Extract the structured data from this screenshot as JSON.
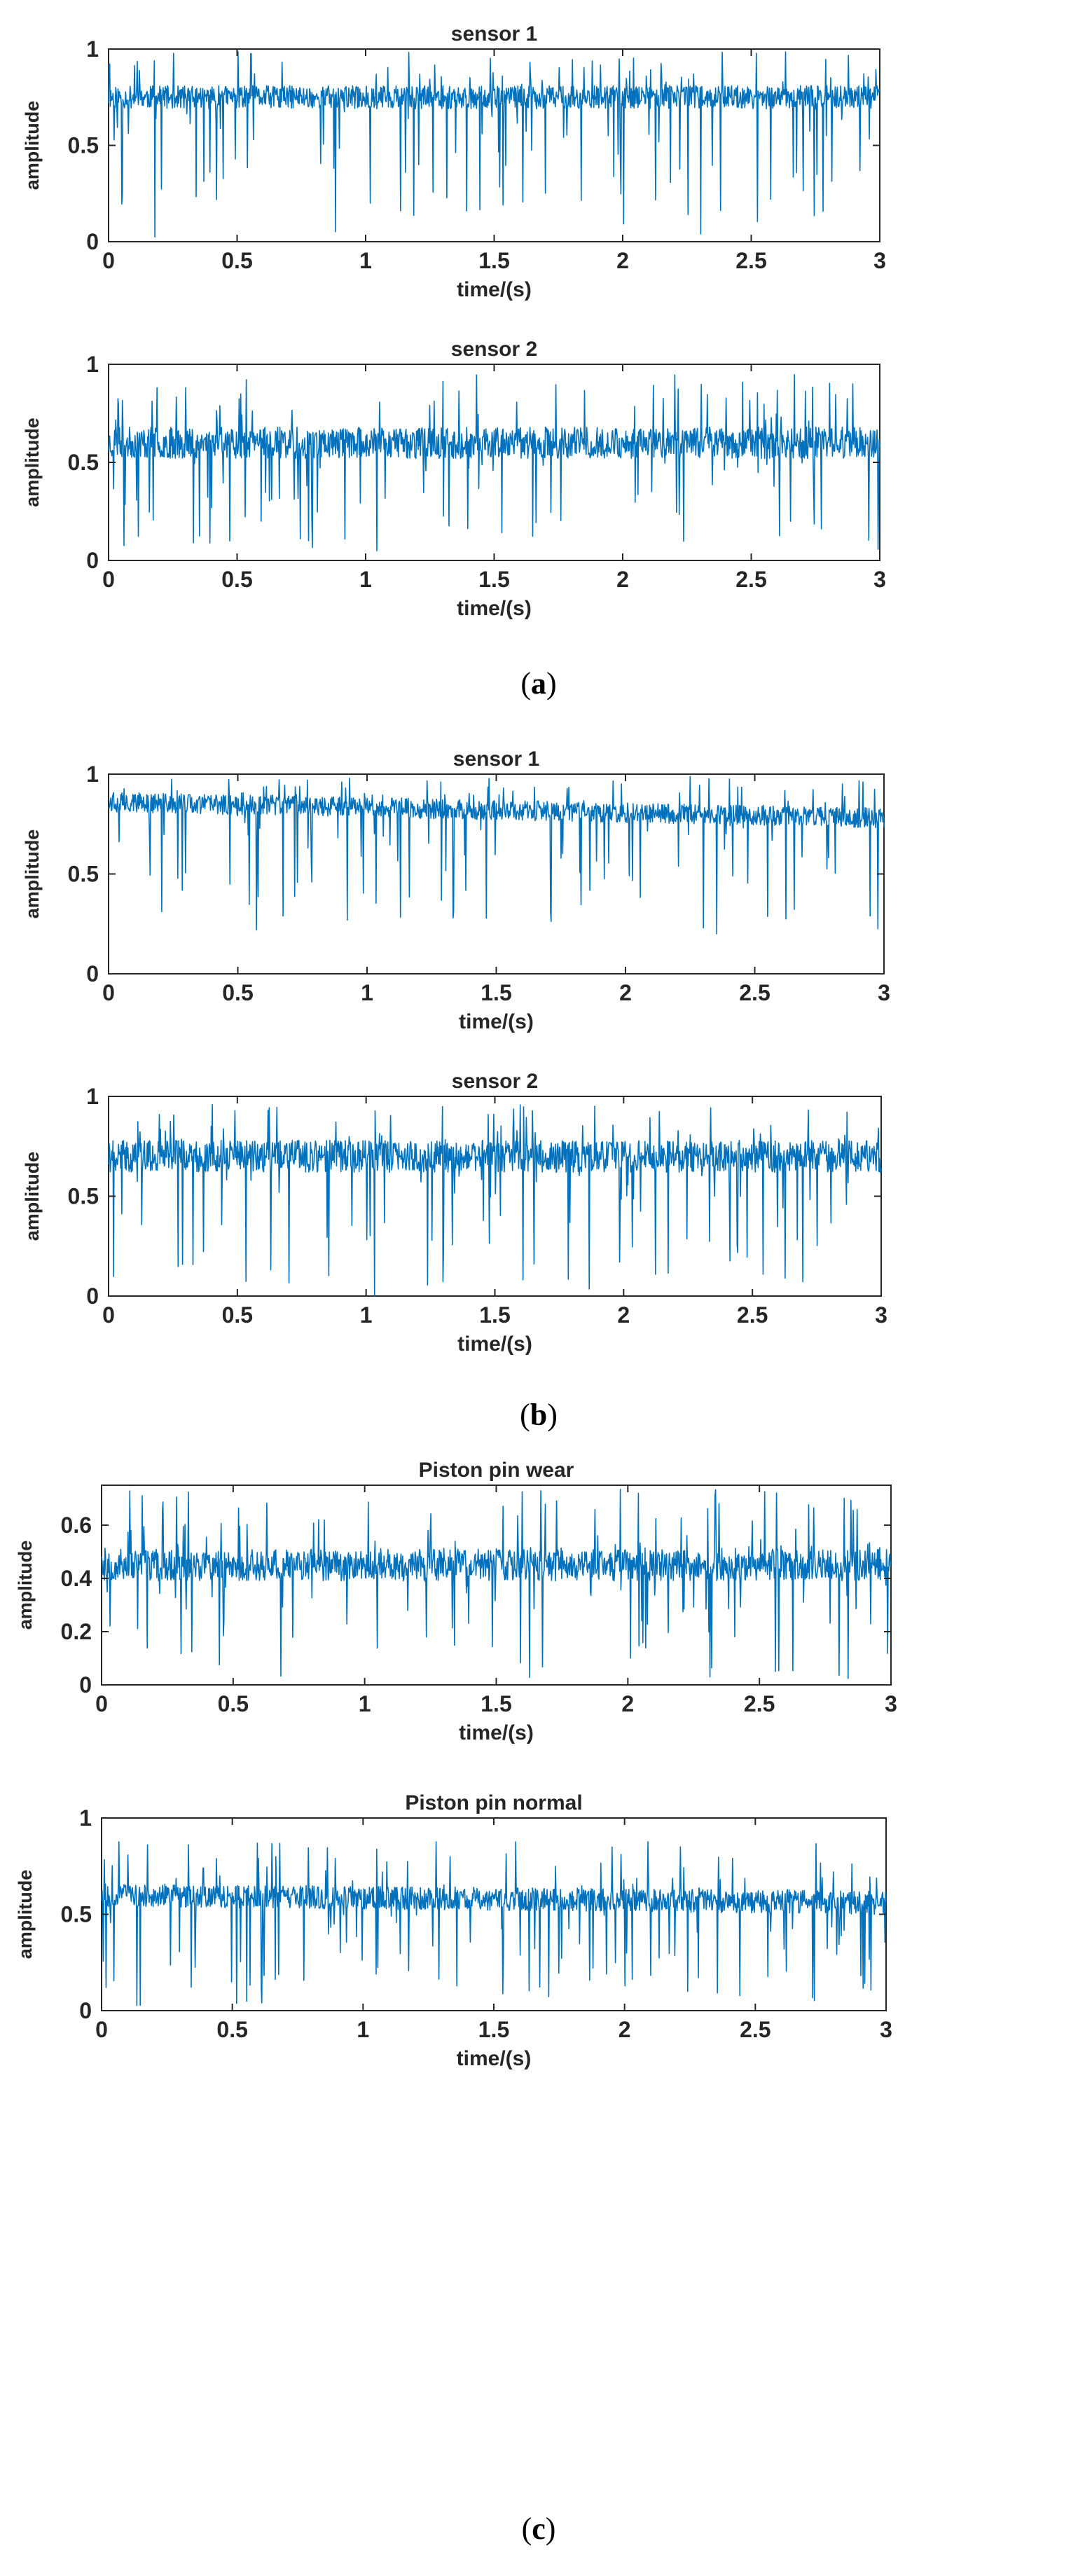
{
  "colors": {
    "signal": "#0072BD",
    "axis": "#262626",
    "background": "#ffffff"
  },
  "panels": [
    {
      "caption": "a",
      "open": "(",
      "close": ")"
    },
    {
      "caption": "b",
      "open": "(",
      "close": ")"
    },
    {
      "caption": "c",
      "open": "(",
      "close": ")"
    }
  ],
  "chart_data": [
    {
      "type": "line",
      "panel": "a",
      "title": "sensor 1",
      "xlabel": "time/(s)",
      "ylabel": "amplitude",
      "xlim": [
        0,
        3
      ],
      "ylim": [
        0,
        1
      ],
      "xticks": [
        0,
        0.5,
        1,
        1.5,
        2,
        2.5,
        3
      ],
      "xtick_labels": [
        "0",
        "0.5",
        "1",
        "1.5",
        "2",
        "2.5",
        "3"
      ],
      "yticks": [
        0,
        0.5,
        1
      ],
      "ytick_labels": [
        "0",
        "0.5",
        "1"
      ],
      "series": [
        {
          "name": "sensor 1",
          "mean": 0.75,
          "band": 0.06,
          "max": 0.99,
          "min": 0.02,
          "trend": 0,
          "seed": 11
        }
      ]
    },
    {
      "type": "line",
      "panel": "a",
      "title": "sensor 2",
      "xlabel": "time/(s)",
      "ylabel": "amplitude",
      "xlim": [
        0,
        3
      ],
      "ylim": [
        0,
        1
      ],
      "xticks": [
        0,
        0.5,
        1,
        1.5,
        2,
        2.5,
        3
      ],
      "xtick_labels": [
        "0",
        "0.5",
        "1",
        "1.5",
        "2",
        "2.5",
        "3"
      ],
      "yticks": [
        0,
        0.5,
        1
      ],
      "ytick_labels": [
        "0",
        "0.5",
        "1"
      ],
      "series": [
        {
          "name": "sensor 2",
          "mean": 0.6,
          "band": 0.08,
          "max": 0.95,
          "min": 0.04,
          "trend": 0,
          "seed": 23
        }
      ]
    },
    {
      "type": "line",
      "panel": "b",
      "title": "sensor 1",
      "xlabel": "time/(s)",
      "ylabel": "amplitude",
      "xlim": [
        0,
        3
      ],
      "ylim": [
        0,
        1
      ],
      "xticks": [
        0,
        0.5,
        1,
        1.5,
        2,
        2.5,
        3
      ],
      "xtick_labels": [
        "0",
        "0.5",
        "1",
        "1.5",
        "2",
        "2.5",
        "3"
      ],
      "yticks": [
        0,
        0.5,
        1
      ],
      "ytick_labels": [
        "0",
        "0.5",
        "1"
      ],
      "series": [
        {
          "name": "sensor 1",
          "mean": 0.86,
          "band": 0.05,
          "max": 0.99,
          "min": 0.2,
          "trend": -0.08,
          "seed": 37
        }
      ]
    },
    {
      "type": "line",
      "panel": "b",
      "title": "sensor 2",
      "xlabel": "time/(s)",
      "ylabel": "amplitude",
      "xlim": [
        0,
        3
      ],
      "ylim": [
        0,
        1
      ],
      "xticks": [
        0,
        0.5,
        1,
        1.5,
        2,
        2.5,
        3
      ],
      "xtick_labels": [
        "0",
        "0.5",
        "1",
        "1.5",
        "2",
        "2.5",
        "3"
      ],
      "yticks": [
        0,
        0.5,
        1
      ],
      "ytick_labels": [
        "0",
        "0.5",
        "1"
      ],
      "series": [
        {
          "name": "sensor 2",
          "mean": 0.7,
          "band": 0.08,
          "max": 0.96,
          "min": 0.0,
          "trend": 0,
          "seed": 41
        }
      ]
    },
    {
      "type": "line",
      "panel": "c",
      "title": "Piston pin wear",
      "xlabel": "time/(s)",
      "ylabel": "amplitude",
      "xlim": [
        0,
        3
      ],
      "ylim": [
        0,
        0.75
      ],
      "xticks": [
        0,
        0.5,
        1,
        1.5,
        2,
        2.5,
        3
      ],
      "xtick_labels": [
        "0",
        "0.5",
        "1",
        "1.5",
        "2",
        "2.5",
        "3"
      ],
      "yticks": [
        0,
        0.2,
        0.4,
        0.6
      ],
      "ytick_labels": [
        "0",
        "0.2",
        "0.4",
        "0.6"
      ],
      "series": [
        {
          "name": "Piston pin wear",
          "mean": 0.45,
          "band": 0.06,
          "max": 0.74,
          "min": 0.02,
          "trend": 0,
          "seed": 53
        }
      ]
    },
    {
      "type": "line",
      "panel": "c",
      "title": "Piston pin normal",
      "xlabel": "time/(s)",
      "ylabel": "amplitude",
      "xlim": [
        0,
        3
      ],
      "ylim": [
        0,
        1
      ],
      "xticks": [
        0,
        0.5,
        1,
        1.5,
        2,
        2.5,
        3
      ],
      "xtick_labels": [
        "0",
        "0.5",
        "1",
        "1.5",
        "2",
        "2.5",
        "3"
      ],
      "yticks": [
        0,
        0.5,
        1
      ],
      "ytick_labels": [
        "0",
        "0.5",
        "1"
      ],
      "series": [
        {
          "name": "Piston pin normal",
          "mean": 0.6,
          "band": 0.06,
          "max": 0.88,
          "min": 0.02,
          "trend": -0.04,
          "seed": 67
        }
      ]
    }
  ]
}
